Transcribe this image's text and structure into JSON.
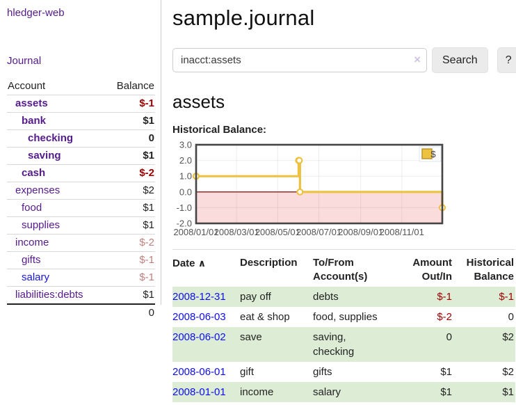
{
  "app": {
    "brand": "hledger-web"
  },
  "colors": {
    "link_purple": "#551a8b",
    "link_blue": "#1414dd",
    "negative_strong": "#a00000",
    "negative_muted": "#c1807d",
    "row_stripe_green": "#ddedd5",
    "series_yellow": "#edc240"
  },
  "sidebar": {
    "journal_link": "Journal",
    "accounts": {
      "header_account": "Account",
      "header_balance": "Balance",
      "rows": [
        {
          "account": "assets",
          "balance": "$-1"
        },
        {
          "account": "bank",
          "balance": "$1"
        },
        {
          "account": "checking",
          "balance": "0"
        },
        {
          "account": "saving",
          "balance": "$1"
        },
        {
          "account": "cash",
          "balance": "$-2"
        },
        {
          "account": "expenses",
          "balance": "$2"
        },
        {
          "account": "food",
          "balance": "$1"
        },
        {
          "account": "supplies",
          "balance": "$1"
        },
        {
          "account": "income",
          "balance": "$-2"
        },
        {
          "account": "gifts",
          "balance": "$-1"
        },
        {
          "account": "salary",
          "balance": "$-1"
        },
        {
          "account": "liabilities:debts",
          "balance": "$1"
        }
      ],
      "total": "0"
    }
  },
  "main": {
    "title": "sample.journal",
    "search": {
      "value": "inacct:assets",
      "clear_icon": "×",
      "search_button": "Search",
      "help_button": "?"
    },
    "heading": "assets",
    "chart_title": "Historical Balance:"
  },
  "chart_data": {
    "type": "line",
    "title": "Historical Balance:",
    "step": true,
    "x_range": [
      "2008-01-01",
      "2008-12-31"
    ],
    "ylim": [
      -2,
      3
    ],
    "y_ticks": [
      "3.0",
      "2.0",
      "1.0",
      "0.0",
      "-1.0",
      "-2.0"
    ],
    "x_ticks": [
      {
        "label": "2008/01/01",
        "date": "2008-01-01"
      },
      {
        "label": "2008/03/01",
        "date": "2008-03-01"
      },
      {
        "label": "2008/05/01",
        "date": "2008-05-01"
      },
      {
        "label": "2008/07/01",
        "date": "2008-07-01"
      },
      {
        "label": "2008/09/01",
        "date": "2008-09-01"
      },
      {
        "label": "2008/11/01",
        "date": "2008-11-01"
      }
    ],
    "series": [
      {
        "name": "$",
        "color": "#edc240",
        "points": [
          {
            "date": "2008-01-01",
            "y": 1
          },
          {
            "date": "2008-06-01",
            "y": 2
          },
          {
            "date": "2008-06-02",
            "y": 2
          },
          {
            "date": "2008-06-03",
            "y": 0
          },
          {
            "date": "2008-12-31",
            "y": -1
          }
        ]
      }
    ],
    "legend": {
      "label": "$",
      "position": "top-right"
    },
    "zero_line_color": "#8b1a1a",
    "negative_region_color": "#fbdcdc",
    "grid": true
  },
  "register": {
    "headers": {
      "date": "Date",
      "description": "Description",
      "accounts": "To/From\nAccount(s)",
      "amount": "Amount\nOut/In",
      "balance": "Historical\nBalance"
    },
    "sort_icon": "∧",
    "rows": [
      {
        "date": "2008-12-31",
        "description": "pay off",
        "accounts": "debts",
        "amount": "$-1",
        "balance": "$-1"
      },
      {
        "date": "2008-06-03",
        "description": "eat & shop",
        "accounts": "food, supplies",
        "amount": "$-2",
        "balance": "0"
      },
      {
        "date": "2008-06-02",
        "description": "save",
        "accounts": "saving,\nchecking",
        "amount": "0",
        "balance": "$2"
      },
      {
        "date": "2008-06-01",
        "description": "gift",
        "accounts": "gifts",
        "amount": "$1",
        "balance": "$2"
      },
      {
        "date": "2008-01-01",
        "description": "income",
        "accounts": "salary",
        "amount": "$1",
        "balance": "$1"
      }
    ]
  }
}
